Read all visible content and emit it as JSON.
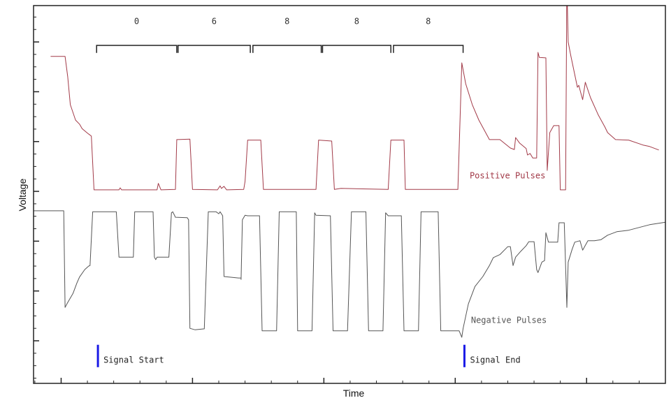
{
  "chart_data": {
    "type": "line",
    "title": "",
    "xlabel": "Time",
    "ylabel": "Voltage",
    "xlim": [
      -0.21,
      4.6
    ],
    "ylim": [
      -0.855,
      6.73
    ],
    "x_major_ticks": [
      0,
      1,
      2,
      3,
      4
    ],
    "x_minor_step": 0.2,
    "y_major_ticks": [
      0,
      1,
      2,
      3,
      4,
      5,
      6
    ],
    "y_minor_step": 0.25,
    "tick_labels_shown": false,
    "grid": false,
    "colors": {
      "positive": "#a23a48",
      "negative": "#555555",
      "marker": "#1a1ae6",
      "bracket": "#222222"
    },
    "series": [
      {
        "name": "Positive Pulses",
        "points": [
          [
            -0.08,
            5.71
          ],
          [
            0.03,
            5.71
          ],
          [
            0.05,
            5.3
          ],
          [
            0.07,
            4.74
          ],
          [
            0.11,
            4.43
          ],
          [
            0.14,
            4.35
          ],
          [
            0.16,
            4.26
          ],
          [
            0.2,
            4.17
          ],
          [
            0.23,
            4.11
          ],
          [
            0.25,
            3.03
          ],
          [
            0.44,
            3.03
          ],
          [
            0.45,
            3.07
          ],
          [
            0.46,
            3.03
          ],
          [
            0.73,
            3.03
          ],
          [
            0.74,
            3.16
          ],
          [
            0.76,
            3.03
          ],
          [
            0.87,
            3.04
          ],
          [
            0.88,
            4.04
          ],
          [
            0.98,
            4.05
          ],
          [
            1.0,
            3.04
          ],
          [
            1.19,
            3.03
          ],
          [
            1.21,
            3.11
          ],
          [
            1.22,
            3.06
          ],
          [
            1.24,
            3.1
          ],
          [
            1.26,
            3.03
          ],
          [
            1.39,
            3.04
          ],
          [
            1.4,
            3.2
          ],
          [
            1.42,
            4.03
          ],
          [
            1.52,
            4.03
          ],
          [
            1.54,
            3.04
          ],
          [
            1.94,
            3.04
          ],
          [
            1.96,
            4.03
          ],
          [
            2.06,
            4.01
          ],
          [
            2.08,
            3.04
          ],
          [
            2.13,
            3.06
          ],
          [
            2.49,
            3.04
          ],
          [
            2.51,
            4.03
          ],
          [
            2.61,
            4.03
          ],
          [
            2.62,
            3.04
          ],
          [
            3.02,
            3.04
          ],
          [
            3.05,
            5.58
          ],
          [
            3.08,
            5.16
          ],
          [
            3.13,
            4.74
          ],
          [
            3.18,
            4.43
          ],
          [
            3.26,
            4.04
          ],
          [
            3.34,
            4.04
          ],
          [
            3.42,
            3.87
          ],
          [
            3.45,
            3.84
          ],
          [
            3.46,
            4.08
          ],
          [
            3.49,
            3.97
          ],
          [
            3.54,
            3.86
          ],
          [
            3.55,
            3.73
          ],
          [
            3.57,
            3.76
          ],
          [
            3.59,
            3.67
          ],
          [
            3.62,
            3.67
          ],
          [
            3.63,
            5.79
          ],
          [
            3.64,
            5.69
          ],
          [
            3.69,
            5.68
          ],
          [
            3.7,
            3.42
          ],
          [
            3.72,
            4.18
          ],
          [
            3.75,
            4.32
          ],
          [
            3.79,
            4.32
          ],
          [
            3.8,
            3.03
          ],
          [
            3.84,
            3.03
          ],
          [
            3.85,
            7.2
          ],
          [
            3.86,
            6.0
          ],
          [
            3.88,
            5.72
          ],
          [
            3.93,
            5.09
          ],
          [
            3.94,
            5.13
          ],
          [
            3.97,
            4.84
          ],
          [
            3.99,
            5.19
          ],
          [
            4.03,
            4.88
          ],
          [
            4.09,
            4.53
          ],
          [
            4.14,
            4.29
          ],
          [
            4.16,
            4.18
          ],
          [
            4.22,
            4.04
          ],
          [
            4.32,
            4.03
          ],
          [
            4.43,
            3.93
          ],
          [
            4.48,
            3.9
          ],
          [
            4.55,
            3.83
          ]
        ]
      },
      {
        "name": "Negative Pulses",
        "points": [
          [
            -0.21,
            2.61
          ],
          [
            0.02,
            2.61
          ],
          [
            0.03,
            0.67
          ],
          [
            0.05,
            0.77
          ],
          [
            0.09,
            0.95
          ],
          [
            0.12,
            1.16
          ],
          [
            0.14,
            1.28
          ],
          [
            0.18,
            1.43
          ],
          [
            0.21,
            1.5
          ],
          [
            0.22,
            1.51
          ],
          [
            0.24,
            2.59
          ],
          [
            0.42,
            2.59
          ],
          [
            0.44,
            1.68
          ],
          [
            0.55,
            1.68
          ],
          [
            0.56,
            2.59
          ],
          [
            0.7,
            2.59
          ],
          [
            0.71,
            1.68
          ],
          [
            0.72,
            1.63
          ],
          [
            0.73,
            1.68
          ],
          [
            0.82,
            1.68
          ],
          [
            0.84,
            2.57
          ],
          [
            0.85,
            2.59
          ],
          [
            0.87,
            2.48
          ],
          [
            0.96,
            2.47
          ],
          [
            0.97,
            2.43
          ],
          [
            0.98,
            0.25
          ],
          [
            1.02,
            0.22
          ],
          [
            1.09,
            0.24
          ],
          [
            1.12,
            2.59
          ],
          [
            1.18,
            2.59
          ],
          [
            1.2,
            2.55
          ],
          [
            1.21,
            2.59
          ],
          [
            1.23,
            2.51
          ],
          [
            1.24,
            1.29
          ],
          [
            1.35,
            1.26
          ],
          [
            1.37,
            1.26
          ],
          [
            1.37,
            1.23
          ],
          [
            1.38,
            2.43
          ],
          [
            1.4,
            2.52
          ],
          [
            1.42,
            2.51
          ],
          [
            1.51,
            2.51
          ],
          [
            1.53,
            0.2
          ],
          [
            1.64,
            0.2
          ],
          [
            1.66,
            2.59
          ],
          [
            1.79,
            2.59
          ],
          [
            1.8,
            0.2
          ],
          [
            1.91,
            0.2
          ],
          [
            1.93,
            2.57
          ],
          [
            1.94,
            2.52
          ],
          [
            2.05,
            2.51
          ],
          [
            2.07,
            0.2
          ],
          [
            2.18,
            0.2
          ],
          [
            2.21,
            2.59
          ],
          [
            2.32,
            2.59
          ],
          [
            2.34,
            0.2
          ],
          [
            2.45,
            0.2
          ],
          [
            2.47,
            2.57
          ],
          [
            2.49,
            2.51
          ],
          [
            2.59,
            2.51
          ],
          [
            2.61,
            0.2
          ],
          [
            2.72,
            0.2
          ],
          [
            2.74,
            2.59
          ],
          [
            2.87,
            2.59
          ],
          [
            2.89,
            0.2
          ],
          [
            3.03,
            0.2
          ],
          [
            3.05,
            0.07
          ],
          [
            3.06,
            0.25
          ],
          [
            3.1,
            0.74
          ],
          [
            3.15,
            1.09
          ],
          [
            3.21,
            1.29
          ],
          [
            3.26,
            1.51
          ],
          [
            3.29,
            1.67
          ],
          [
            3.34,
            1.73
          ],
          [
            3.4,
            1.89
          ],
          [
            3.42,
            1.89
          ],
          [
            3.44,
            1.51
          ],
          [
            3.46,
            1.68
          ],
          [
            3.5,
            1.8
          ],
          [
            3.54,
            1.91
          ],
          [
            3.56,
            1.99
          ],
          [
            3.6,
            1.99
          ],
          [
            3.62,
            1.43
          ],
          [
            3.63,
            1.37
          ],
          [
            3.66,
            1.58
          ],
          [
            3.68,
            1.61
          ],
          [
            3.69,
            2.17
          ],
          [
            3.71,
            1.98
          ],
          [
            3.78,
            1.98
          ],
          [
            3.79,
            2.37
          ],
          [
            3.83,
            2.37
          ],
          [
            3.85,
            0.67
          ],
          [
            3.86,
            1.58
          ],
          [
            3.89,
            1.84
          ],
          [
            3.91,
            1.98
          ],
          [
            3.95,
            2.01
          ],
          [
            3.97,
            1.82
          ],
          [
            4.01,
            2.01
          ],
          [
            4.06,
            2.01
          ],
          [
            4.11,
            2.03
          ],
          [
            4.16,
            2.12
          ],
          [
            4.23,
            2.19
          ],
          [
            4.32,
            2.22
          ],
          [
            4.48,
            2.33
          ],
          [
            4.6,
            2.38
          ]
        ]
      }
    ],
    "series_labels": [
      {
        "text": "Positive Pulses",
        "t": 3.11,
        "v": 3.31
      },
      {
        "text": "Negative Pulses",
        "t": 3.12,
        "v": 0.41
      }
    ],
    "brackets": {
      "v": 5.93,
      "drop": 0.15,
      "label_v": 6.41,
      "items": [
        {
          "label": "0",
          "start": 0.27,
          "end": 0.88
        },
        {
          "label": "6",
          "start": 0.89,
          "end": 1.44
        },
        {
          "label": "8",
          "start": 1.46,
          "end": 1.98
        },
        {
          "label": "8",
          "start": 1.99,
          "end": 2.51
        },
        {
          "label": "8",
          "start": 2.53,
          "end": 3.06
        }
      ]
    },
    "markers": [
      {
        "label": "Signal Start",
        "t": 0.28,
        "v_from": -0.08,
        "v_to": -0.53
      },
      {
        "label": "Signal End",
        "t": 3.07,
        "v_from": -0.08,
        "v_to": -0.53
      }
    ]
  }
}
